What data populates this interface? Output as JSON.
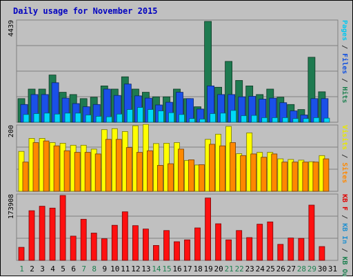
{
  "chart_data": {
    "type": "bar",
    "title": "Daily usage for November 2015",
    "categories": [
      "1",
      "2",
      "3",
      "4",
      "5",
      "6",
      "7",
      "8",
      "9",
      "10",
      "11",
      "12",
      "13",
      "14",
      "15",
      "16",
      "17",
      "18",
      "19",
      "20",
      "21",
      "22",
      "23",
      "24",
      "25",
      "26",
      "27",
      "28",
      "29",
      "30",
      "31"
    ],
    "weekend_days": [
      "1",
      "7",
      "8",
      "14",
      "15",
      "21",
      "22",
      "28",
      "29"
    ],
    "panels": [
      {
        "id": "hits",
        "max_label": "4439",
        "ymax": 4439,
        "legend": [
          {
            "text": "Pages",
            "color": "#00c8f0"
          },
          {
            "text": " / ",
            "color": "#333333"
          },
          {
            "text": "Files",
            "color": "#1050e0"
          },
          {
            "text": " / ",
            "color": "#333333"
          },
          {
            "text": "Hits",
            "color": "#1e8050"
          }
        ],
        "series": [
          {
            "name": "Hits",
            "color": "#1e7a50",
            "values": [
              1040,
              1460,
              1460,
              2080,
              1320,
              1220,
              1040,
              1100,
              1600,
              1460,
              2000,
              1460,
              1320,
              1120,
              1120,
              1460,
              1040,
              680,
              4439,
              1540,
              2680,
              1840,
              1600,
              1220,
              1460,
              1100,
              780,
              560,
              2860,
              1340,
              0
            ]
          },
          {
            "name": "Files",
            "color": "#1a50e8",
            "values": [
              780,
              1220,
              1220,
              1740,
              1060,
              820,
              680,
              780,
              1460,
              1180,
              1680,
              1160,
              1060,
              760,
              880,
              1320,
              1040,
              580,
              1600,
              1220,
              1220,
              1120,
              1140,
              1020,
              1060,
              860,
              500,
              320,
              1040,
              1040,
              0
            ]
          },
          {
            "name": "Pages",
            "color": "#00d8f8",
            "values": [
              340,
              380,
              400,
              360,
              400,
              400,
              320,
              260,
              240,
              360,
              560,
              650,
              560,
              500,
              420,
              340,
              160,
              140,
              380,
              400,
              520,
              290,
              300,
              200,
              200,
              200,
              160,
              160,
              200,
              180,
              0
            ]
          }
        ]
      },
      {
        "id": "visits",
        "max_label": "200",
        "ymax": 200,
        "legend": [
          {
            "text": "Visits",
            "color": "#e8e800"
          },
          {
            "text": " / ",
            "color": "#333333"
          },
          {
            "text": "Sites",
            "color": "#ff8800"
          }
        ],
        "series": [
          {
            "name": "Visits",
            "color": "#ffff00",
            "values": [
              123,
              163,
              163,
              150,
              148,
              142,
              142,
              130,
              190,
              193,
              184,
              202,
              206,
              147,
              148,
              150,
              95,
              81,
              160,
              176,
              200,
              116,
              180,
              120,
              120,
              100,
              98,
              96,
              91,
              110,
              0
            ]
          },
          {
            "name": "Sites",
            "color": "#ff8800",
            "values": [
              90,
              150,
              155,
              140,
              125,
              120,
              120,
              115,
              160,
              160,
              135,
              120,
              125,
              80,
              85,
              130,
              97,
              82,
              145,
              140,
              150,
              110,
              115,
              105,
              115,
              90,
              90,
              90,
              90,
              100,
              0
            ]
          }
        ]
      },
      {
        "id": "kbytes",
        "max_label": "173908",
        "ymax": 173908,
        "legend": [
          {
            "text": "KB F",
            "color": "#e00000"
          },
          {
            "text": " / ",
            "color": "#333333"
          },
          {
            "text": "KB In",
            "color": "#2090d0"
          },
          {
            "text": " / ",
            "color": "#333333"
          },
          {
            "text": "KB Out",
            "color": "#1e8050"
          }
        ],
        "series": [
          {
            "name": "KB F",
            "color": "#ff1010",
            "values": [
              35000,
              133000,
              145000,
              140000,
              174000,
              65000,
              110000,
              73000,
              58000,
              94000,
              130000,
              93000,
              84000,
              40000,
              80000,
              50000,
              55000,
              87000,
              167000,
              98000,
              55000,
              80000,
              61000,
              97000,
              103000,
              43000,
              60000,
              59000,
              148000,
              37000,
              0
            ]
          }
        ]
      }
    ]
  }
}
